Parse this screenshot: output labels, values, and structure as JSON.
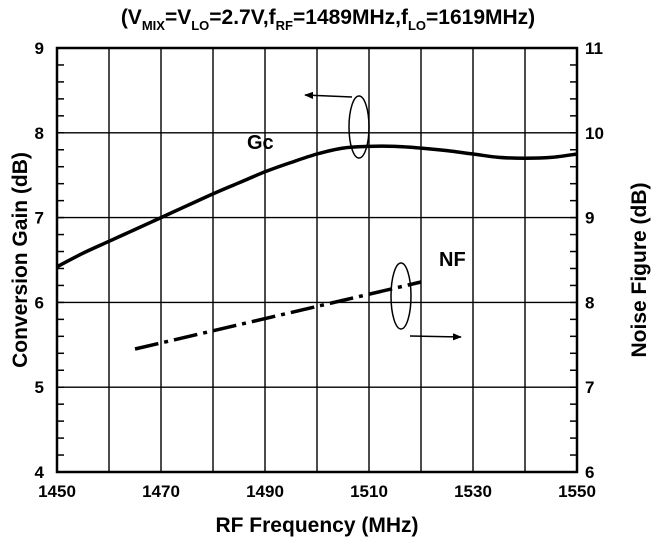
{
  "chart_data": {
    "type": "line",
    "title": {
      "parts": [
        {
          "text": "(V",
          "sub": false
        },
        {
          "text": "MIX",
          "sub": true
        },
        {
          "text": "=V",
          "sub": false
        },
        {
          "text": "LO",
          "sub": true
        },
        {
          "text": "=2.7V,f",
          "sub": false
        },
        {
          "text": "RF",
          "sub": true
        },
        {
          "text": "=1489MHz,f",
          "sub": false
        },
        {
          "text": "LO",
          "sub": true
        },
        {
          "text": "=1619MHz)",
          "sub": false
        }
      ]
    },
    "xlabel": "RF Frequency (MHz)",
    "ylabel_left": "Conversion Gain (dB)",
    "ylabel_right": "Noise Figure (dB)",
    "xlim": [
      1450,
      1550
    ],
    "ylim_left": [
      4,
      9
    ],
    "ylim_right": [
      6,
      11
    ],
    "x_ticks": [
      1450,
      1470,
      1490,
      1510,
      1530,
      1550
    ],
    "x_minor_step": 10,
    "y_ticks_left": [
      4,
      5,
      6,
      7,
      8,
      9
    ],
    "y_ticks_right": [
      6,
      7,
      8,
      9,
      10,
      11
    ],
    "grid": true,
    "series": [
      {
        "name": "Gc",
        "axis": "left",
        "style": "solid",
        "color": "#000000",
        "x": [
          1450,
          1455,
          1460,
          1465,
          1470,
          1475,
          1480,
          1485,
          1490,
          1495,
          1500,
          1505,
          1510,
          1515,
          1520,
          1525,
          1530,
          1535,
          1540,
          1545,
          1550
        ],
        "y": [
          6.42,
          6.58,
          6.72,
          6.86,
          7.0,
          7.14,
          7.28,
          7.41,
          7.54,
          7.65,
          7.75,
          7.82,
          7.84,
          7.84,
          7.82,
          7.79,
          7.75,
          7.71,
          7.7,
          7.71,
          7.75
        ]
      },
      {
        "name": "NF",
        "axis": "right",
        "style": "dash-dot",
        "color": "#000000",
        "x": [
          1465,
          1520
        ],
        "y": [
          7.45,
          8.24
        ]
      }
    ],
    "annotations": [
      {
        "text": "Gc",
        "target": "Gc",
        "arrow": "left"
      },
      {
        "text": "NF",
        "target": "NF",
        "arrow": "right"
      }
    ]
  }
}
